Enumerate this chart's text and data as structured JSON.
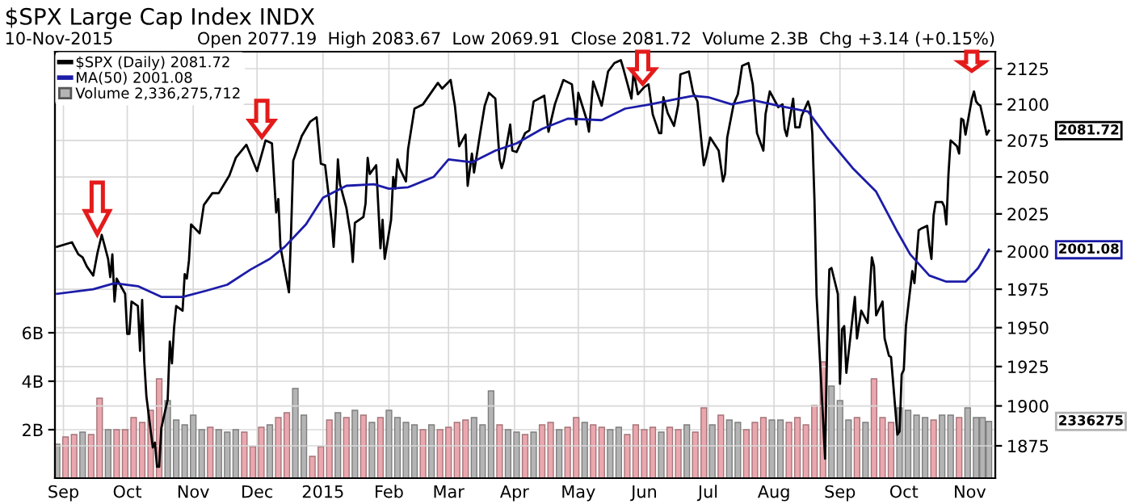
{
  "chart_data": {
    "type": "line",
    "title": "$SPX Large Cap Index INDX",
    "annotations": [
      "10-Nov-2015",
      "Open 2077.19  High 2083.67  Low 2069.91  Close 2081.72  Volume 2.3B  Chg +3.14 (+0.15%)",
      "2081.72",
      "2001.08",
      "2336275"
    ],
    "series": [
      {
        "name": "$SPX (Daily) 2081.72",
        "axis": "y2",
        "color": "#000000",
        "x": [
          "2014-08-29",
          "2014-09-05",
          "2014-09-08",
          "2014-09-10",
          "2014-09-12",
          "2014-09-15",
          "2014-09-17",
          "2014-09-19",
          "2014-09-22",
          "2014-09-23",
          "2014-09-24",
          "2014-09-25",
          "2014-09-26",
          "2014-09-30",
          "2014-10-01",
          "2014-10-02",
          "2014-10-03",
          "2014-10-06",
          "2014-10-07",
          "2014-10-08",
          "2014-10-09",
          "2014-10-10",
          "2014-10-13",
          "2014-10-14",
          "2014-10-15",
          "2014-10-16",
          "2014-10-17",
          "2014-10-20",
          "2014-10-21",
          "2014-10-22",
          "2014-10-23",
          "2014-10-24",
          "2014-10-27",
          "2014-10-28",
          "2014-10-29",
          "2014-10-30",
          "2014-10-31",
          "2014-11-04",
          "2014-11-06",
          "2014-11-10",
          "2014-11-13",
          "2014-11-18",
          "2014-11-21",
          "2014-11-26",
          "2014-12-01",
          "2014-12-05",
          "2014-12-08",
          "2014-12-10",
          "2014-12-11",
          "2014-12-12",
          "2014-12-16",
          "2014-12-17",
          "2014-12-18",
          "2014-12-22",
          "2014-12-26",
          "2014-12-29",
          "2014-12-31",
          "2015-01-02",
          "2015-01-05",
          "2015-01-06",
          "2015-01-07",
          "2015-01-08",
          "2015-01-09",
          "2015-01-12",
          "2015-01-14",
          "2015-01-15",
          "2015-01-16",
          "2015-01-20",
          "2015-01-21",
          "2015-01-22",
          "2015-01-23",
          "2015-01-26",
          "2015-01-27",
          "2015-01-28",
          "2015-01-29",
          "2015-01-30",
          "2015-02-02",
          "2015-02-03",
          "2015-02-04",
          "2015-02-05",
          "2015-02-06",
          "2015-02-09",
          "2015-02-10",
          "2015-02-13",
          "2015-02-17",
          "2015-02-24",
          "2015-02-26",
          "2015-03-02",
          "2015-03-04",
          "2015-03-06",
          "2015-03-09",
          "2015-03-10",
          "2015-03-12",
          "2015-03-13",
          "2015-03-16",
          "2015-03-18",
          "2015-03-20",
          "2015-03-23",
          "2015-03-25",
          "2015-03-26",
          "2015-03-27",
          "2015-03-30",
          "2015-03-31",
          "2015-04-02",
          "2015-04-06",
          "2015-04-08",
          "2015-04-10",
          "2015-04-15",
          "2015-04-17",
          "2015-04-20",
          "2015-04-24",
          "2015-04-28",
          "2015-04-30",
          "2015-05-01",
          "2015-05-05",
          "2015-05-06",
          "2015-05-08",
          "2015-05-12",
          "2015-05-15",
          "2015-05-18",
          "2015-05-21",
          "2015-05-22",
          "2015-05-26",
          "2015-05-27",
          "2015-05-29",
          "2015-06-01",
          "2015-06-03",
          "2015-06-05",
          "2015-06-08",
          "2015-06-09",
          "2015-06-10",
          "2015-06-12",
          "2015-06-15",
          "2015-06-17",
          "2015-06-18",
          "2015-06-22",
          "2015-06-24",
          "2015-06-26",
          "2015-06-29",
          "2015-06-30",
          "2015-07-02",
          "2015-07-06",
          "2015-07-08",
          "2015-07-09",
          "2015-07-10",
          "2015-07-13",
          "2015-07-15",
          "2015-07-17",
          "2015-07-20",
          "2015-07-22",
          "2015-07-24",
          "2015-07-27",
          "2015-07-28",
          "2015-07-30",
          "2015-08-03",
          "2015-08-05",
          "2015-08-06",
          "2015-08-07",
          "2015-08-10",
          "2015-08-11",
          "2015-08-13",
          "2015-08-14",
          "2015-08-17",
          "2015-08-18",
          "2015-08-19",
          "2015-08-20",
          "2015-08-21",
          "2015-08-24",
          "2015-08-25",
          "2015-08-26",
          "2015-08-27",
          "2015-08-28",
          "2015-08-31",
          "2015-09-01",
          "2015-09-02",
          "2015-09-03",
          "2015-09-04",
          "2015-09-08",
          "2015-09-09",
          "2015-09-10",
          "2015-09-11",
          "2015-09-14",
          "2015-09-16",
          "2015-09-17",
          "2015-09-18",
          "2015-09-21",
          "2015-09-22",
          "2015-09-24",
          "2015-09-25",
          "2015-09-28",
          "2015-09-29",
          "2015-09-30",
          "2015-10-01",
          "2015-10-02",
          "2015-10-05",
          "2015-10-06",
          "2015-10-07",
          "2015-10-08",
          "2015-10-09",
          "2015-10-12",
          "2015-10-13",
          "2015-10-14",
          "2015-10-15",
          "2015-10-16",
          "2015-10-19",
          "2015-10-20",
          "2015-10-21",
          "2015-10-22",
          "2015-10-23",
          "2015-10-26",
          "2015-10-27",
          "2015-10-28",
          "2015-10-29",
          "2015-10-30",
          "2015-11-02",
          "2015-11-03",
          "2015-11-04",
          "2015-11-05",
          "2015-11-06",
          "2015-11-09",
          "2015-11-10"
        ],
        "values": [
          2003,
          2006,
          1998,
          1996,
          1990,
          1984,
          1999,
          2011,
          1995,
          1983,
          1998,
          1967,
          1982,
          1972,
          1946,
          1946,
          1967,
          1964,
          1935,
          1968,
          1928,
          1906,
          1874,
          1877,
          1862,
          1862,
          1886,
          1904,
          1941,
          1927,
          1950,
          1964,
          1961,
          1985,
          1982,
          1994,
          2018,
          2012,
          2031,
          2039,
          2039,
          2051,
          2063,
          2072,
          2054,
          2075,
          2073,
          2026,
          2035,
          2003,
          1973,
          2013,
          2061,
          2078,
          2088,
          2091,
          2059,
          2058,
          2021,
          2003,
          2026,
          2062,
          2045,
          2029,
          2011,
          1993,
          2019,
          2023,
          2032,
          2063,
          2052,
          2058,
          2030,
          2002,
          2021,
          1995,
          2021,
          2050,
          2042,
          2062,
          2056,
          2047,
          2069,
          2097,
          2100,
          2115,
          2111,
          2117,
          2099,
          2071,
          2079,
          2044,
          2066,
          2053,
          2081,
          2099,
          2108,
          2104,
          2062,
          2056,
          2061,
          2086,
          2068,
          2067,
          2080,
          2082,
          2102,
          2106,
          2081,
          2100,
          2117,
          2114,
          2086,
          2108,
          2089,
          2081,
          2116,
          2099,
          2123,
          2129,
          2131,
          2126,
          2104,
          2123,
          2107,
          2112,
          2114,
          2093,
          2080,
          2080,
          2105,
          2094,
          2085,
          2100,
          2121,
          2123,
          2108,
          2102,
          2058,
          2063,
          2077,
          2068,
          2047,
          2052,
          2077,
          2100,
          2107,
          2127,
          2129,
          2114,
          2080,
          2068,
          2093,
          2109,
          2098,
          2100,
          2083,
          2078,
          2104,
          2084,
          2084,
          2092,
          2102,
          2097,
          2080,
          2035,
          1971,
          1893,
          1867,
          1940,
          1988,
          1989,
          1972,
          1914,
          1949,
          1951,
          1921,
          1970,
          1943,
          1952,
          1961,
          1953,
          1996,
          1990,
          1958,
          1967,
          1943,
          1932,
          1931,
          1882,
          1884,
          1920,
          1923,
          1951,
          1987,
          1979,
          1996,
          2014,
          2015,
          2017,
          2004,
          1995,
          2024,
          2033,
          2033,
          2030,
          2018,
          2052,
          2075,
          2071,
          2066,
          2090,
          2089,
          2079,
          2104,
          2109,
          2102,
          2100,
          2099,
          2079,
          2081.72
        ]
      },
      {
        "name": "MA(50) 2001.08",
        "axis": "y2",
        "color": "#1c1ca8",
        "x": [
          "2014-08-29",
          "2014-09-15",
          "2014-09-25",
          "2014-10-06",
          "2014-10-17",
          "2014-10-27",
          "2014-11-07",
          "2014-11-17",
          "2014-11-28",
          "2014-12-07",
          "2014-12-14",
          "2014-12-24",
          "2015-01-01",
          "2015-01-12",
          "2015-01-25",
          "2015-02-01",
          "2015-02-10",
          "2015-02-22",
          "2015-03-01",
          "2015-03-12",
          "2015-03-23",
          "2015-04-02",
          "2015-04-14",
          "2015-04-26",
          "2015-05-12",
          "2015-05-23",
          "2015-06-04",
          "2015-06-17",
          "2015-06-24",
          "2015-07-01",
          "2015-07-12",
          "2015-07-22",
          "2015-08-03",
          "2015-08-17",
          "2015-08-26",
          "2015-09-07",
          "2015-09-18",
          "2015-09-28",
          "2015-10-04",
          "2015-10-13",
          "2015-10-21",
          "2015-10-30",
          "2015-11-05",
          "2015-11-10"
        ],
        "values": [
          1972,
          1975,
          1979,
          1977,
          1970,
          1970,
          1974,
          1978,
          1988,
          1995,
          2003,
          2018,
          2036,
          2044,
          2045,
          2042,
          2043,
          2050,
          2062,
          2060,
          2068,
          2073,
          2083,
          2090,
          2089,
          2097,
          2100,
          2104,
          2106,
          2105,
          2100,
          2103,
          2099,
          2095,
          2077,
          2056,
          2040,
          2013,
          1998,
          1984,
          1980,
          1980,
          1989,
          2001.08
        ]
      },
      {
        "name": "Volume 2,336,275,712",
        "type": "bar",
        "axis": "y",
        "color": "#b4b4b4",
        "x": [
          "2014-08-29",
          "2014-09-02",
          "2014-09-06",
          "2014-09-10",
          "2014-09-14",
          "2014-09-18",
          "2014-09-22",
          "2014-09-26",
          "2014-09-30",
          "2014-10-04",
          "2014-10-08",
          "2014-10-12",
          "2014-10-16",
          "2014-10-20",
          "2014-10-24",
          "2014-10-28",
          "2014-11-01",
          "2014-11-05",
          "2014-11-09",
          "2014-11-13",
          "2014-11-17",
          "2014-11-21",
          "2014-11-25",
          "2014-11-29",
          "2014-12-03",
          "2014-12-07",
          "2014-12-11",
          "2014-12-15",
          "2014-12-19",
          "2014-12-23",
          "2014-12-27",
          "2014-12-31",
          "2015-01-04",
          "2015-01-08",
          "2015-01-12",
          "2015-01-16",
          "2015-01-20",
          "2015-01-24",
          "2015-01-28",
          "2015-02-01",
          "2015-02-05",
          "2015-02-09",
          "2015-02-13",
          "2015-02-17",
          "2015-02-21",
          "2015-02-25",
          "2015-03-01",
          "2015-03-05",
          "2015-03-09",
          "2015-03-13",
          "2015-03-17",
          "2015-03-21",
          "2015-03-25",
          "2015-03-29",
          "2015-04-02",
          "2015-04-06",
          "2015-04-10",
          "2015-04-14",
          "2015-04-18",
          "2015-04-22",
          "2015-04-26",
          "2015-04-30",
          "2015-05-04",
          "2015-05-08",
          "2015-05-12",
          "2015-05-16",
          "2015-05-20",
          "2015-05-24",
          "2015-05-28",
          "2015-06-01",
          "2015-06-05",
          "2015-06-09",
          "2015-06-13",
          "2015-06-17",
          "2015-06-21",
          "2015-06-25",
          "2015-06-29",
          "2015-07-03",
          "2015-07-07",
          "2015-07-11",
          "2015-07-15",
          "2015-07-19",
          "2015-07-23",
          "2015-07-27",
          "2015-07-31",
          "2015-08-04",
          "2015-08-08",
          "2015-08-12",
          "2015-08-16",
          "2015-08-20",
          "2015-08-24",
          "2015-08-28",
          "2015-09-01",
          "2015-09-05",
          "2015-09-09",
          "2015-09-13",
          "2015-09-17",
          "2015-09-21",
          "2015-09-25",
          "2015-09-29",
          "2015-10-03",
          "2015-10-07",
          "2015-10-11",
          "2015-10-15",
          "2015-10-19",
          "2015-10-23",
          "2015-10-27",
          "2015-10-31",
          "2015-11-04",
          "2015-11-07",
          "2015-11-10"
        ],
        "values": [
          1.4,
          1.7,
          1.8,
          1.9,
          1.8,
          3.3,
          2.0,
          2.0,
          2.0,
          2.5,
          2.3,
          2.8,
          4.1,
          3.2,
          2.4,
          2.2,
          2.6,
          2.0,
          2.1,
          2.0,
          1.9,
          2.0,
          1.9,
          1.3,
          2.1,
          2.2,
          2.5,
          2.7,
          3.7,
          2.6,
          0.9,
          1.3,
          2.4,
          2.7,
          2.5,
          2.8,
          2.6,
          2.3,
          2.5,
          2.8,
          2.5,
          2.3,
          2.2,
          2.0,
          2.2,
          2.0,
          2.1,
          2.3,
          2.4,
          2.5,
          2.2,
          3.6,
          2.2,
          2.0,
          1.9,
          1.8,
          1.9,
          2.2,
          2.3,
          2.0,
          2.1,
          2.5,
          2.3,
          2.2,
          2.1,
          2.0,
          2.1,
          1.8,
          2.2,
          2.0,
          2.1,
          1.9,
          2.1,
          2.0,
          2.2,
          1.9,
          2.9,
          2.2,
          2.6,
          2.4,
          2.3,
          2.0,
          2.3,
          2.5,
          2.4,
          2.4,
          2.3,
          2.5,
          2.2,
          3.0,
          4.8,
          3.8,
          3.2,
          2.4,
          2.5,
          2.3,
          4.1,
          2.5,
          2.3,
          2.9,
          2.8,
          2.6,
          2.5,
          2.4,
          2.6,
          2.6,
          2.5,
          2.9,
          2.5,
          2.5,
          2.34
        ],
        "colors": [
          "#b4b4b4",
          "#eba7ae",
          "#eba7ae",
          "#b4b4b4",
          "#eba7ae",
          "#eba7ae",
          "#b4b4b4",
          "#eba7ae",
          "#eba7ae",
          "#eba7ae",
          "#eba7ae",
          "#eba7ae",
          "#eba7ae",
          "#b4b4b4",
          "#b4b4b4",
          "#b4b4b4",
          "#b4b4b4",
          "#b4b4b4",
          "#eba7ae",
          "#b4b4b4",
          "#b4b4b4",
          "#b4b4b4",
          "#eba7ae",
          "#eba7ae",
          "#eba7ae",
          "#b4b4b4",
          "#eba7ae",
          "#eba7ae",
          "#b4b4b4",
          "#b4b4b4",
          "#eba7ae",
          "#eba7ae",
          "#eba7ae",
          "#b4b4b4",
          "#eba7ae",
          "#b4b4b4",
          "#eba7ae",
          "#b4b4b4",
          "#eba7ae",
          "#b4b4b4",
          "#b4b4b4",
          "#b4b4b4",
          "#b4b4b4",
          "#eba7ae",
          "#b4b4b4",
          "#eba7ae",
          "#eba7ae",
          "#eba7ae",
          "#eba7ae",
          "#b4b4b4",
          "#b4b4b4",
          "#b4b4b4",
          "#eba7ae",
          "#b4b4b4",
          "#b4b4b4",
          "#eba7ae",
          "#b4b4b4",
          "#eba7ae",
          "#eba7ae",
          "#b4b4b4",
          "#eba7ae",
          "#eba7ae",
          "#b4b4b4",
          "#eba7ae",
          "#eba7ae",
          "#b4b4b4",
          "#b4b4b4",
          "#eba7ae",
          "#eba7ae",
          "#eba7ae",
          "#eba7ae",
          "#b4b4b4",
          "#eba7ae",
          "#eba7ae",
          "#b4b4b4",
          "#eba7ae",
          "#eba7ae",
          "#b4b4b4",
          "#eba7ae",
          "#b4b4b4",
          "#b4b4b4",
          "#eba7ae",
          "#eba7ae",
          "#eba7ae",
          "#b4b4b4",
          "#b4b4b4",
          "#eba7ae",
          "#eba7ae",
          "#eba7ae",
          "#eba7ae",
          "#eba7ae",
          "#b4b4b4",
          "#b4b4b4",
          "#b4b4b4",
          "#eba7ae",
          "#b4b4b4",
          "#eba7ae",
          "#eba7ae",
          "#eba7ae",
          "#b4b4b4",
          "#b4b4b4",
          "#b4b4b4",
          "#b4b4b4",
          "#eba7ae",
          "#b4b4b4",
          "#b4b4b4",
          "#eba7ae",
          "#b4b4b4",
          "#b4b4b4",
          "#b4b4b4",
          "#b4b4b4"
        ]
      }
    ],
    "xlim": [
      "2014-08-28",
      "2015-11-13"
    ],
    "xticks": [
      {
        "value": "2014-09-01",
        "label": "Sep"
      },
      {
        "value": "2014-10-01",
        "label": "Oct"
      },
      {
        "value": "2014-11-01",
        "label": "Nov"
      },
      {
        "value": "2014-12-01",
        "label": "Dec"
      },
      {
        "value": "2015-01-01",
        "label": "2015"
      },
      {
        "value": "2015-02-01",
        "label": "Feb"
      },
      {
        "value": "2015-03-01",
        "label": "Mar"
      },
      {
        "value": "2015-04-01",
        "label": "Apr"
      },
      {
        "value": "2015-05-01",
        "label": "May"
      },
      {
        "value": "2015-06-01",
        "label": "Jun"
      },
      {
        "value": "2015-07-01",
        "label": "Jul"
      },
      {
        "value": "2015-08-01",
        "label": "Aug"
      },
      {
        "value": "2015-09-01",
        "label": "Sep"
      },
      {
        "value": "2015-10-01",
        "label": "Oct"
      },
      {
        "value": "2015-11-01",
        "label": "Nov"
      }
    ],
    "ylim": [
      0,
      17.6
    ],
    "yticks": [
      {
        "value": 2,
        "label": "2B"
      },
      {
        "value": 4,
        "label": "4B"
      },
      {
        "value": 6,
        "label": "6B"
      }
    ],
    "y2lim": [
      1855,
      2137
    ],
    "y2ticks": [
      1875,
      1900,
      1925,
      1950,
      1975,
      2000,
      2025,
      2050,
      2075,
      2100,
      2125
    ],
    "log": "y2",
    "grid": true,
    "legend": "top left"
  }
}
